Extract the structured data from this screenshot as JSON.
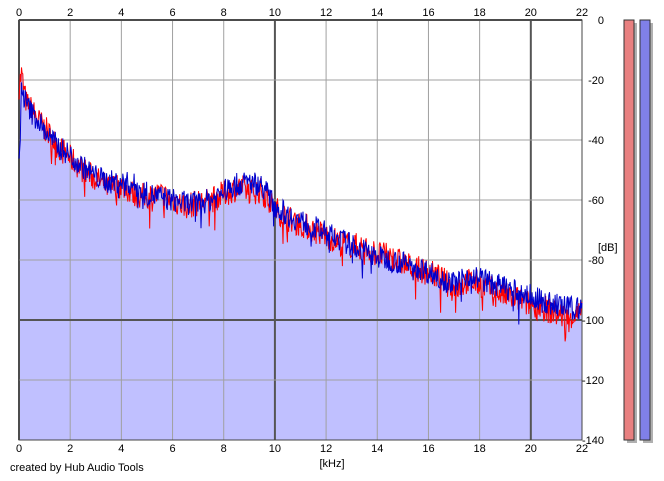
{
  "credit": "created by Hub Audio Tools",
  "chart_data": {
    "type": "area",
    "title": "",
    "xlabel": "[kHz]",
    "ylabel": "[dB]",
    "xlim": [
      0,
      22
    ],
    "ylim": [
      -140,
      0
    ],
    "x_ticks": [
      0,
      2,
      4,
      6,
      8,
      10,
      12,
      14,
      16,
      18,
      20,
      22
    ],
    "y_ticks": [
      0,
      -20,
      -40,
      -60,
      -80,
      -100,
      -120,
      -140
    ],
    "grid": true,
    "legend": "none",
    "series": [
      {
        "color": "#ff0000",
        "x": [
          0.0,
          0.1,
          0.2,
          0.3,
          0.5,
          0.8,
          1.0,
          1.5,
          2.0,
          2.5,
          3.0,
          3.5,
          4.0,
          4.5,
          5.0,
          5.5,
          6.0,
          6.5,
          7.0,
          7.5,
          8.0,
          8.5,
          9.0,
          9.5,
          10.0,
          10.5,
          11.0,
          11.5,
          12.0,
          12.5,
          13.0,
          13.5,
          14.0,
          14.5,
          15.0,
          15.5,
          16.0,
          16.5,
          17.0,
          17.5,
          18.0,
          18.5,
          19.0,
          19.5,
          20.0,
          20.5,
          21.0,
          21.5,
          22.0
        ],
        "values": [
          -22,
          -18,
          -24,
          -28,
          -30,
          -34,
          -36,
          -42,
          -46,
          -50,
          -53,
          -56,
          -55,
          -58,
          -59,
          -58,
          -60,
          -62,
          -61,
          -60,
          -58,
          -56,
          -57,
          -57,
          -63,
          -66,
          -68,
          -70,
          -72,
          -74,
          -75,
          -76,
          -78,
          -79,
          -81,
          -83,
          -84,
          -86,
          -90,
          -87,
          -88,
          -90,
          -92,
          -93,
          -95,
          -96,
          -98,
          -99,
          -98
        ]
      },
      {
        "color": "#0000cc",
        "x": [
          0.0,
          0.1,
          0.2,
          0.3,
          0.5,
          0.8,
          1.0,
          1.5,
          2.0,
          2.5,
          3.0,
          3.5,
          4.0,
          4.5,
          5.0,
          5.5,
          6.0,
          6.5,
          7.0,
          7.5,
          8.0,
          8.5,
          9.0,
          9.5,
          10.0,
          10.5,
          11.0,
          11.5,
          12.0,
          12.5,
          13.0,
          13.5,
          14.0,
          14.5,
          15.0,
          15.5,
          16.0,
          16.5,
          17.0,
          17.5,
          18.0,
          18.5,
          19.0,
          19.5,
          20.0,
          20.5,
          21.0,
          21.5,
          22.0
        ],
        "values": [
          -50,
          -22,
          -26,
          -28,
          -31,
          -34,
          -37,
          -42,
          -45,
          -49,
          -52,
          -54,
          -54,
          -55,
          -58,
          -59,
          -60,
          -61,
          -61,
          -60,
          -57,
          -55,
          -54,
          -55,
          -62,
          -65,
          -67,
          -69,
          -71,
          -73,
          -75,
          -77,
          -79,
          -80,
          -81,
          -82,
          -84,
          -86,
          -88,
          -85,
          -86,
          -88,
          -89,
          -91,
          -92,
          -94,
          -95,
          -96,
          -96
        ]
      }
    ],
    "fill_color": "#c0c0ff",
    "meters": [
      {
        "color": "#e88080"
      },
      {
        "color": "#8080e8"
      }
    ]
  }
}
